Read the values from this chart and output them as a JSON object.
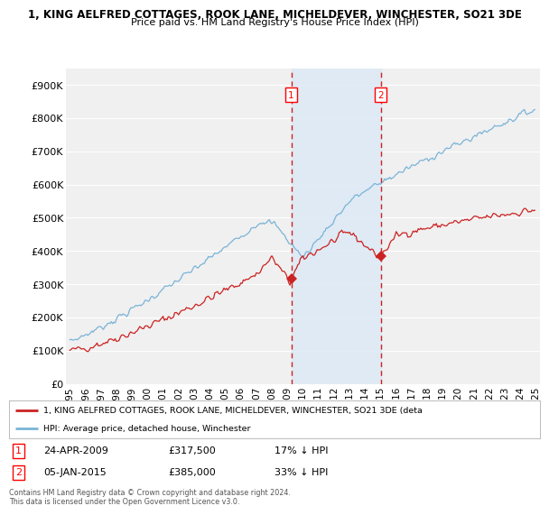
{
  "title_line1": "1, KING AELFRED COTTAGES, ROOK LANE, MICHELDEVER, WINCHESTER, SO21 3DE",
  "title_line2": "Price paid vs. HM Land Registry's House Price Index (HPI)",
  "ylim": [
    0,
    950000
  ],
  "yticks": [
    0,
    100000,
    200000,
    300000,
    400000,
    500000,
    600000,
    700000,
    800000,
    900000
  ],
  "ytick_labels": [
    "£0",
    "£100K",
    "£200K",
    "£300K",
    "£400K",
    "£500K",
    "£600K",
    "£700K",
    "£800K",
    "£900K"
  ],
  "hpi_color": "#7ab4d8",
  "price_color": "#cc2222",
  "vline_color": "#cc2222",
  "shade_color": "#deeaf5",
  "sale1_price": 317500,
  "sale1_date": "24-APR-2009",
  "sale1_label": "17% ↓ HPI",
  "sale2_price": 385000,
  "sale2_date": "05-JAN-2015",
  "sale2_label": "33% ↓ HPI",
  "legend_property": "1, KING AELFRED COTTAGES, ROOK LANE, MICHELDEVER, WINCHESTER, SO21 3DE (deta",
  "legend_hpi": "HPI: Average price, detached house, Winchester",
  "footnote": "Contains HM Land Registry data © Crown copyright and database right 2024.\nThis data is licensed under the Open Government Licence v3.0.",
  "bg_color": "#ffffff",
  "plot_bg_color": "#f0f0f0",
  "grid_color": "#ffffff"
}
